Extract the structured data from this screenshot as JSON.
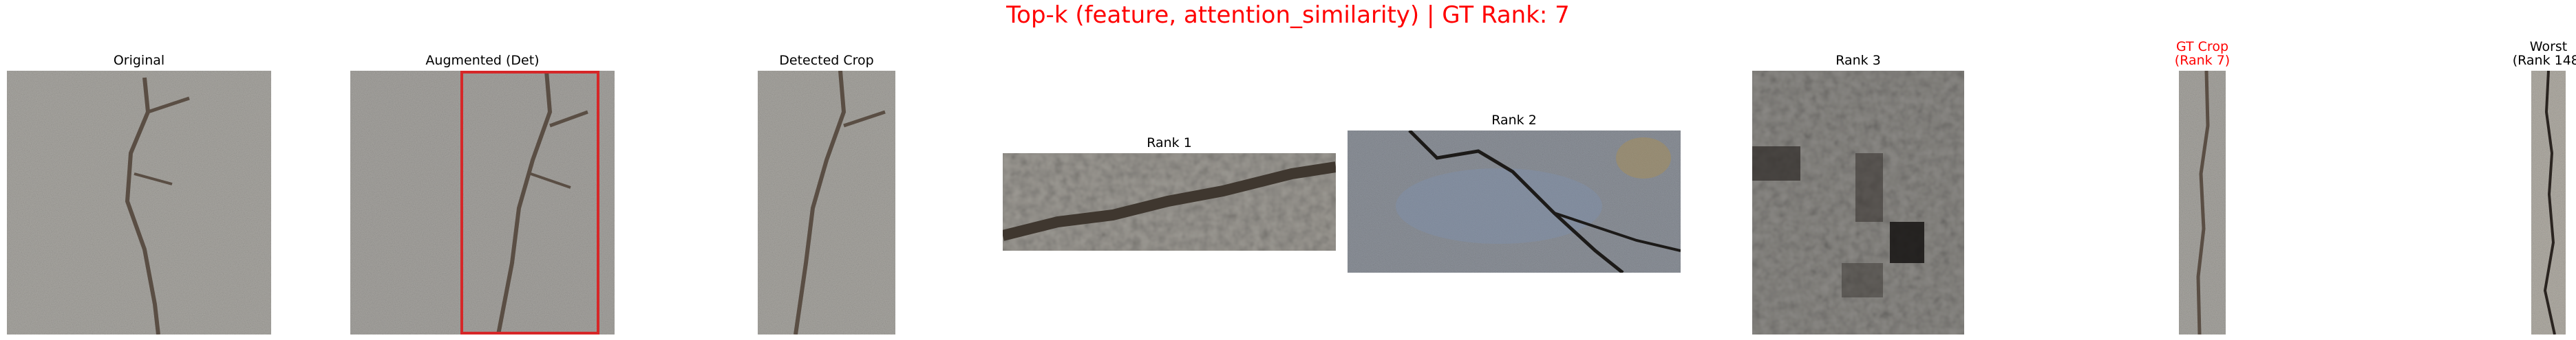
{
  "figure": {
    "title": "Top-k (feature, attention_similarity) | GT Rank: 7",
    "title_color": "#ff0000"
  },
  "panels": {
    "original": {
      "title": "Original",
      "color": "#000000"
    },
    "augmented": {
      "title": "Augmented (Det)",
      "color": "#000000",
      "box_color": "#d62728"
    },
    "detected_crop": {
      "title": "Detected Crop",
      "color": "#000000"
    },
    "rank1": {
      "title": "Rank 1",
      "color": "#000000"
    },
    "rank2": {
      "title": "Rank 2",
      "color": "#000000"
    },
    "rank3": {
      "title": "Rank 3",
      "color": "#000000"
    },
    "gt_crop": {
      "title_line1": "GT Crop",
      "title_line2": "(Rank 7)",
      "color": "#ff0000"
    },
    "worst": {
      "title_line1": "Worst",
      "title_line2": "(Rank 148)",
      "color": "#000000"
    }
  }
}
